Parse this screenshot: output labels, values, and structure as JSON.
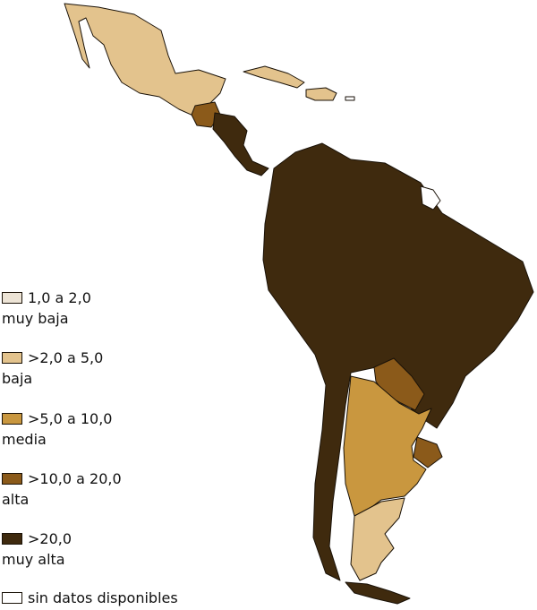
{
  "legend": {
    "items": [
      {
        "range": "1,0 a 2,0",
        "level": "muy baja",
        "color": "#ede4d6"
      },
      {
        "range": ">2,0 a 5,0",
        "level": "baja",
        "color": "#e3c38d"
      },
      {
        "range": ">5,0 a 10,0",
        "level": "media",
        "color": "#c9973f"
      },
      {
        "range": ">10,0 a 20,0",
        "level": "alta",
        "color": "#8b5a1a"
      },
      {
        "range": ">20,0",
        "level": "muy alta",
        "color": "#3f2a0e"
      },
      {
        "range": "sin datos disponibles",
        "level": "",
        "color": "#ffffff"
      }
    ]
  },
  "regions": [
    {
      "name": "mexico",
      "category": "baja"
    },
    {
      "name": "cuba",
      "category": "baja"
    },
    {
      "name": "hispaniola",
      "category": "baja"
    },
    {
      "name": "guatemala",
      "category": "alta"
    },
    {
      "name": "central-america",
      "category": "muy alta"
    },
    {
      "name": "south-america",
      "category": "muy alta"
    },
    {
      "name": "bolivia",
      "category": "muy alta"
    },
    {
      "name": "paraguay",
      "category": "alta"
    },
    {
      "name": "uruguay",
      "category": "alta"
    },
    {
      "name": "argentina",
      "category": "media"
    },
    {
      "name": "chile",
      "category": "muy alta"
    },
    {
      "name": "patagonia",
      "category": "baja"
    },
    {
      "name": "french-guiana",
      "category": "sin datos disponibles"
    }
  ]
}
